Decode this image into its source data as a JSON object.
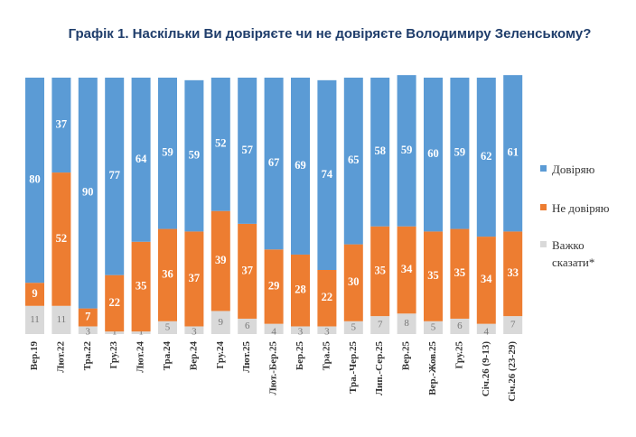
{
  "chart_data": {
    "type": "stacked_bar",
    "title": "Графік 1. Наскільки Ви довіряєте чи не довіряєте Володимиру Зеленському?",
    "categories": [
      "Вер.19",
      "Лют.22",
      "Тра.22",
      "Гру.23",
      "Лют.24",
      "Тра.24",
      "Вер.24",
      "Гру.24",
      "Лют.25",
      "Лют.-Бер.25",
      "Бер.25",
      "Тра.25",
      "Тра.-Чер.25",
      "Лип.-Сер.25",
      "Вер.25",
      "Вер.-Жов.25",
      "Гру.25",
      "Січ.26 (9-13)",
      "Січ.26 (23-29)"
    ],
    "series": [
      {
        "name": "Важко сказати*",
        "color": "#d9d9d9",
        "values": [
          11,
          11,
          3,
          1,
          1,
          5,
          3,
          9,
          6,
          4,
          3,
          3,
          5,
          7,
          8,
          5,
          6,
          4,
          7
        ]
      },
      {
        "name": "Не довіряю",
        "color": "#ed7d31",
        "values": [
          9,
          52,
          7,
          22,
          35,
          36,
          37,
          39,
          37,
          29,
          28,
          22,
          30,
          35,
          34,
          35,
          35,
          34,
          33
        ]
      },
      {
        "name": "Довіряю",
        "color": "#5b9bd5",
        "values": [
          80,
          37,
          90,
          77,
          64,
          59,
          59,
          52,
          57,
          67,
          69,
          74,
          65,
          58,
          59,
          60,
          59,
          62,
          61
        ]
      }
    ]
  }
}
